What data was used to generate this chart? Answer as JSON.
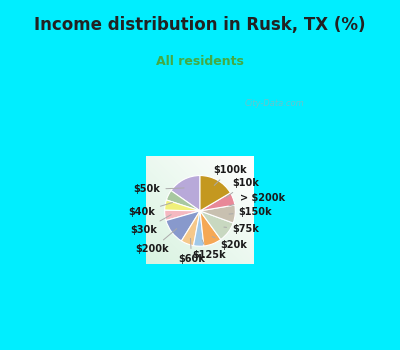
{
  "title": "Income distribution in Rusk, TX (%)",
  "subtitle": "All residents",
  "bg_cyan": "#00EEFF",
  "subtitle_color": "#44aa44",
  "labels": [
    "$100k",
    "$10k",
    "> $200k",
    "$150k",
    "$75k",
    "$20k",
    "$125k",
    "$60k",
    "$200k",
    "$30k",
    "$40k",
    "$50k"
  ],
  "values": [
    13,
    4,
    4,
    4,
    10,
    5,
    4,
    7,
    8,
    7,
    5,
    14
  ],
  "colors": [
    "#b8a9d9",
    "#a8c8a0",
    "#f0f07a",
    "#f5b8c0",
    "#8899cc",
    "#f5c88a",
    "#a0c8e8",
    "#f5a855",
    "#c8d8c0",
    "#c8c0b0",
    "#e88898",
    "#c49820"
  ],
  "watermark": "City-Data.com",
  "label_fontsize": 7,
  "title_fontsize": 12,
  "subtitle_fontsize": 9,
  "title_color": "#222222"
}
